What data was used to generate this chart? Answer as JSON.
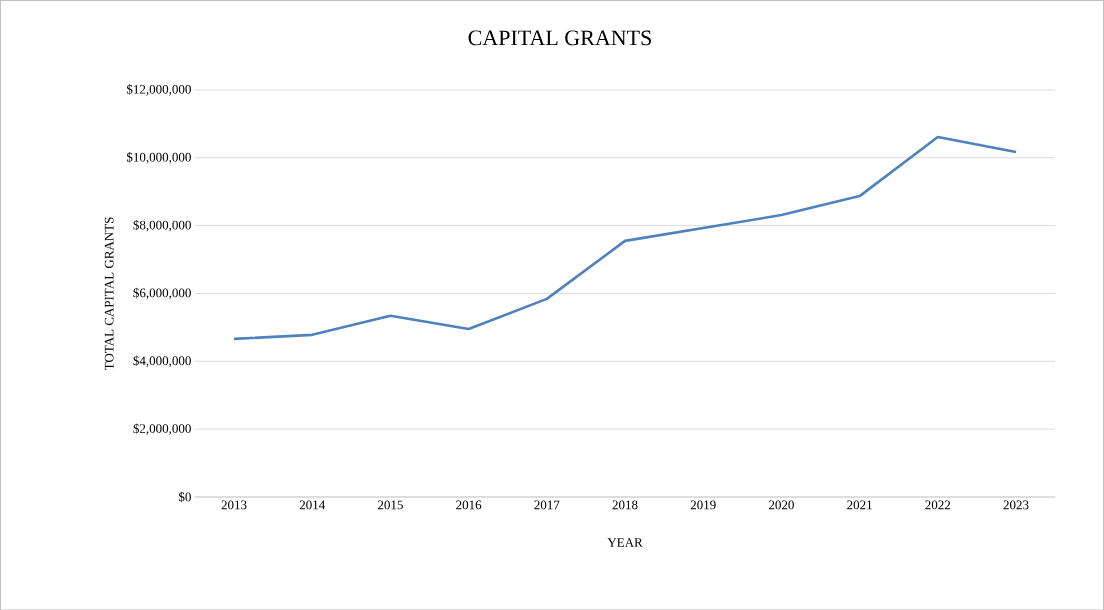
{
  "chart_data": {
    "type": "line",
    "title": "CAPITAL GRANTS",
    "xlabel": "YEAR",
    "ylabel": "TOTAL CAPITAL GRANTS",
    "categories": [
      "2013",
      "2014",
      "2015",
      "2016",
      "2017",
      "2018",
      "2019",
      "2020",
      "2021",
      "2022",
      "2023"
    ],
    "series": [
      {
        "color": "#4f81bd",
        "values": [
          4660000,
          4780000,
          5340000,
          4950000,
          5840000,
          7550000,
          7930000,
          8310000,
          8870000,
          10610000,
          10170000
        ]
      }
    ],
    "ylim": [
      0,
      12000000
    ],
    "yticks": [
      {
        "value": 0,
        "label": "$0"
      },
      {
        "value": 2000000,
        "label": "$2,000,000"
      },
      {
        "value": 4000000,
        "label": "$4,000,000"
      },
      {
        "value": 6000000,
        "label": "$6,000,000"
      },
      {
        "value": 8000000,
        "label": "$8,000,000"
      },
      {
        "value": 10000000,
        "label": "$10,000,000"
      },
      {
        "value": 12000000,
        "label": "$12,000,000"
      }
    ],
    "grid": "y",
    "marker": "none",
    "line_style": "solid"
  }
}
